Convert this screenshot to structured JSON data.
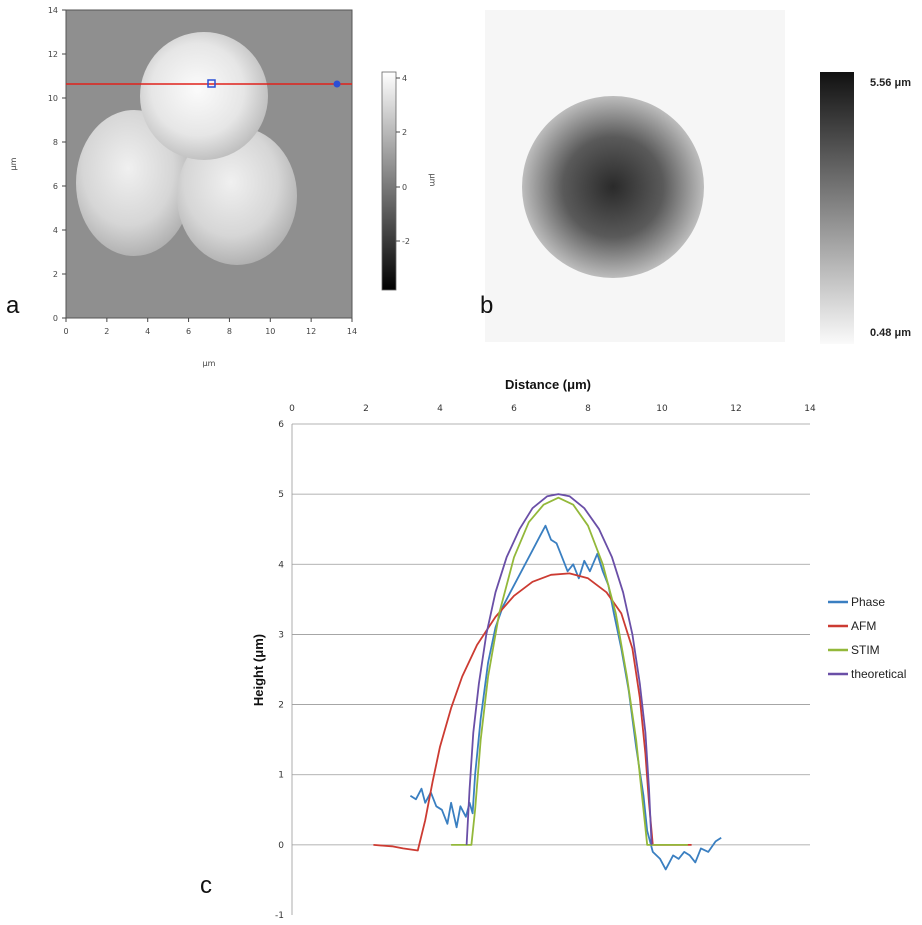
{
  "panels": {
    "a": {
      "label": "a",
      "xlabel": "μm",
      "ylabel": "μm",
      "x_ticks": [
        "0",
        "2",
        "4",
        "6",
        "8",
        "10",
        "12",
        "14"
      ],
      "y_ticks": [
        "0",
        "2",
        "4",
        "6",
        "8",
        "10",
        "12",
        "14"
      ],
      "colorbar_ticks": [
        "4",
        "2",
        "0",
        "-2"
      ],
      "colorbar_unit": "μm"
    },
    "b": {
      "label": "b",
      "colorbar_max": "5.56 μm",
      "colorbar_min": "0.48 μm"
    },
    "c": {
      "label": "c"
    }
  },
  "chart_data": {
    "type": "line",
    "title": "",
    "xlabel": "Distance (μm)",
    "ylabel": "Height (μm)",
    "xlim": [
      0,
      14
    ],
    "ylim": [
      -1,
      6
    ],
    "x_ticks": [
      "0",
      "2",
      "4",
      "6",
      "8",
      "10",
      "12",
      "14"
    ],
    "y_ticks": [
      "-1",
      "0",
      "1",
      "2",
      "3",
      "4",
      "5",
      "6"
    ],
    "grid": true,
    "legend_position": "right",
    "series": [
      {
        "name": "Phase",
        "color": "#3a7fc1",
        "points": [
          [
            3.2,
            0.7
          ],
          [
            3.35,
            0.65
          ],
          [
            3.5,
            0.8
          ],
          [
            3.6,
            0.6
          ],
          [
            3.75,
            0.75
          ],
          [
            3.9,
            0.55
          ],
          [
            4.05,
            0.5
          ],
          [
            4.2,
            0.3
          ],
          [
            4.3,
            0.6
          ],
          [
            4.45,
            0.25
          ],
          [
            4.55,
            0.55
          ],
          [
            4.7,
            0.4
          ],
          [
            4.8,
            0.6
          ],
          [
            4.88,
            0.45
          ],
          [
            4.95,
            1.0
          ],
          [
            5.1,
            1.8
          ],
          [
            5.3,
            2.6
          ],
          [
            5.5,
            3.1
          ],
          [
            5.7,
            3.4
          ],
          [
            5.9,
            3.6
          ],
          [
            6.1,
            3.8
          ],
          [
            6.3,
            4.0
          ],
          [
            6.5,
            4.2
          ],
          [
            6.7,
            4.4
          ],
          [
            6.85,
            4.55
          ],
          [
            7.0,
            4.35
          ],
          [
            7.15,
            4.3
          ],
          [
            7.3,
            4.1
          ],
          [
            7.45,
            3.9
          ],
          [
            7.6,
            4.0
          ],
          [
            7.75,
            3.8
          ],
          [
            7.9,
            4.05
          ],
          [
            8.05,
            3.9
          ],
          [
            8.25,
            4.15
          ],
          [
            8.4,
            3.9
          ],
          [
            8.55,
            3.7
          ],
          [
            8.7,
            3.3
          ],
          [
            8.9,
            2.8
          ],
          [
            9.1,
            2.2
          ],
          [
            9.3,
            1.4
          ],
          [
            9.5,
            0.7
          ],
          [
            9.6,
            0.2
          ],
          [
            9.75,
            -0.1
          ],
          [
            9.95,
            -0.2
          ],
          [
            10.1,
            -0.35
          ],
          [
            10.3,
            -0.15
          ],
          [
            10.45,
            -0.2
          ],
          [
            10.6,
            -0.1
          ],
          [
            10.75,
            -0.15
          ],
          [
            10.9,
            -0.25
          ],
          [
            11.05,
            -0.05
          ],
          [
            11.25,
            -0.1
          ],
          [
            11.45,
            0.05
          ],
          [
            11.6,
            0.1
          ]
        ]
      },
      {
        "name": "AFM",
        "color": "#cc3b32",
        "points": [
          [
            2.2,
            0.0
          ],
          [
            2.7,
            -0.02
          ],
          [
            3.0,
            -0.05
          ],
          [
            3.4,
            -0.08
          ],
          [
            3.6,
            0.35
          ],
          [
            3.8,
            0.9
          ],
          [
            4.0,
            1.4
          ],
          [
            4.3,
            1.95
          ],
          [
            4.6,
            2.4
          ],
          [
            5.0,
            2.85
          ],
          [
            5.5,
            3.25
          ],
          [
            6.0,
            3.55
          ],
          [
            6.5,
            3.75
          ],
          [
            7.0,
            3.85
          ],
          [
            7.5,
            3.87
          ],
          [
            8.0,
            3.8
          ],
          [
            8.5,
            3.6
          ],
          [
            8.9,
            3.3
          ],
          [
            9.2,
            2.8
          ],
          [
            9.4,
            2.1
          ],
          [
            9.55,
            1.3
          ],
          [
            9.65,
            0.6
          ],
          [
            9.75,
            0.0
          ],
          [
            10.2,
            0.0
          ],
          [
            10.8,
            0.0
          ]
        ]
      },
      {
        "name": "STIM",
        "color": "#93b83a",
        "points": [
          [
            4.3,
            0.0
          ],
          [
            4.85,
            0.0
          ],
          [
            4.95,
            0.5
          ],
          [
            5.1,
            1.5
          ],
          [
            5.3,
            2.4
          ],
          [
            5.6,
            3.3
          ],
          [
            6.0,
            4.1
          ],
          [
            6.4,
            4.6
          ],
          [
            6.8,
            4.85
          ],
          [
            7.2,
            4.95
          ],
          [
            7.6,
            4.85
          ],
          [
            8.0,
            4.55
          ],
          [
            8.4,
            4.0
          ],
          [
            8.75,
            3.3
          ],
          [
            9.05,
            2.4
          ],
          [
            9.3,
            1.5
          ],
          [
            9.5,
            0.5
          ],
          [
            9.6,
            0.0
          ],
          [
            10.2,
            0.0
          ],
          [
            10.7,
            0.0
          ]
        ]
      },
      {
        "name": "theoretical",
        "color": "#6a4fa7",
        "points": [
          [
            4.72,
            0.0
          ],
          [
            4.8,
            0.8
          ],
          [
            4.9,
            1.6
          ],
          [
            5.05,
            2.3
          ],
          [
            5.25,
            3.0
          ],
          [
            5.5,
            3.6
          ],
          [
            5.8,
            4.1
          ],
          [
            6.15,
            4.5
          ],
          [
            6.5,
            4.8
          ],
          [
            6.9,
            4.97
          ],
          [
            7.2,
            5.0
          ],
          [
            7.5,
            4.97
          ],
          [
            7.9,
            4.8
          ],
          [
            8.3,
            4.5
          ],
          [
            8.65,
            4.1
          ],
          [
            8.95,
            3.6
          ],
          [
            9.2,
            3.0
          ],
          [
            9.4,
            2.3
          ],
          [
            9.55,
            1.6
          ],
          [
            9.65,
            0.8
          ],
          [
            9.72,
            0.0
          ]
        ]
      }
    ]
  }
}
